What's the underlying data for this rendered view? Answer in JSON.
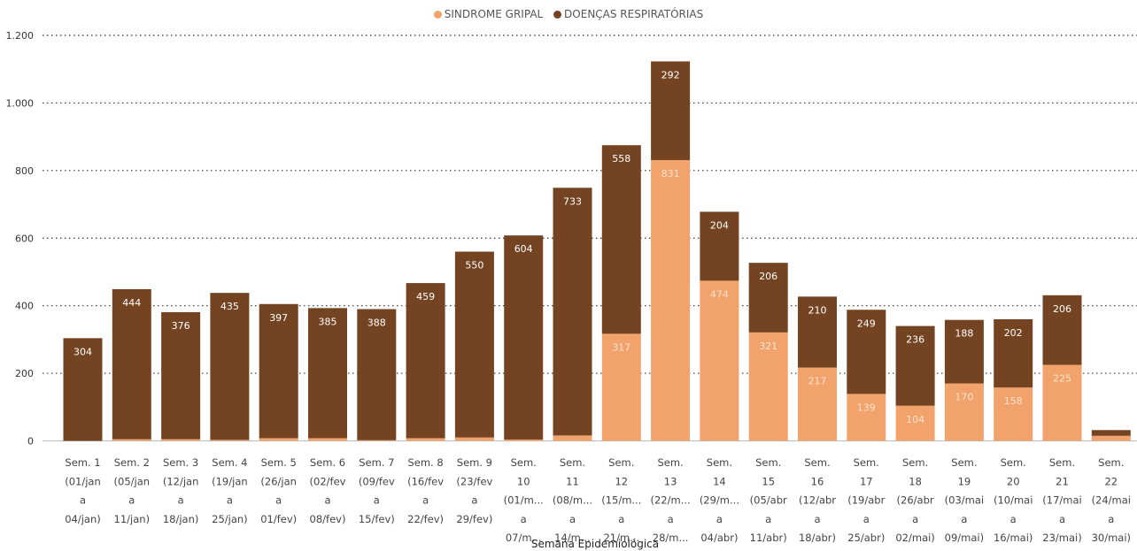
{
  "chart_data": {
    "type": "stacked-bar",
    "xlabel": "Semana Epidemiológica",
    "ylabel": "",
    "ylim": [
      0,
      1200
    ],
    "yticks": [
      0,
      200,
      400,
      600,
      800,
      1000,
      1200
    ],
    "ytick_labels": [
      "0",
      "200",
      "400",
      "600",
      "800",
      "1.000",
      "1.200"
    ],
    "grid": true,
    "legend_position": "top-center",
    "categories": [
      [
        "Sem. 1",
        "(01/jan",
        "a",
        "04/jan)"
      ],
      [
        "Sem. 2",
        "(05/jan",
        "a",
        "11/jan)"
      ],
      [
        "Sem. 3",
        "(12/jan",
        "a",
        "18/jan)"
      ],
      [
        "Sem. 4",
        "(19/jan",
        "a",
        "25/jan)"
      ],
      [
        "Sem. 5",
        "(26/jan",
        "a",
        "01/fev)"
      ],
      [
        "Sem. 6",
        "(02/fev",
        "a",
        "08/fev)"
      ],
      [
        "Sem. 7",
        "(09/fev",
        "a",
        "15/fev)"
      ],
      [
        "Sem. 8",
        "(16/fev",
        "a",
        "22/fev)"
      ],
      [
        "Sem. 9",
        "(23/fev",
        "a",
        "29/fev)"
      ],
      [
        "Sem.",
        "10",
        "(01/m...",
        "a",
        "07/m..."
      ],
      [
        "Sem.",
        "11",
        "(08/m...",
        "a",
        "14/m..."
      ],
      [
        "Sem.",
        "12",
        "(15/m...",
        "a",
        "21/m..."
      ],
      [
        "Sem.",
        "13",
        "(22/m...",
        "a",
        "28/m..."
      ],
      [
        "Sem.",
        "14",
        "(29/m...",
        "a",
        "04/abr)"
      ],
      [
        "Sem.",
        "15",
        "(05/abr",
        "a",
        "11/abr)"
      ],
      [
        "Sem.",
        "16",
        "(12/abr",
        "a",
        "18/abr)"
      ],
      [
        "Sem.",
        "17",
        "(19/abr",
        "a",
        "25/abr)"
      ],
      [
        "Sem.",
        "18",
        "(26/abr",
        "a",
        "02/mai)"
      ],
      [
        "Sem.",
        "19",
        "(03/mai",
        "a",
        "09/mai)"
      ],
      [
        "Sem.",
        "20",
        "(10/mai",
        "a",
        "16/mai)"
      ],
      [
        "Sem.",
        "21",
        "(17/mai",
        "a",
        "23/mai)"
      ],
      [
        "Sem.",
        "22",
        "(24/mai",
        "a",
        "30/mai)"
      ]
    ],
    "series": [
      {
        "name": "SINDROME GRIPAL",
        "color": "#F2A26B",
        "label_color": "#FBE3D0",
        "values": [
          0,
          5,
          5,
          3,
          8,
          8,
          2,
          8,
          10,
          4,
          16,
          317,
          831,
          474,
          321,
          217,
          139,
          104,
          170,
          158,
          225,
          15
        ],
        "labels": [
          "",
          "",
          "",
          "",
          "",
          "",
          "",
          "",
          "",
          "",
          "",
          "317",
          "831",
          "474",
          "321",
          "217",
          "139",
          "104",
          "170",
          "158",
          "225",
          ""
        ]
      },
      {
        "name": "DOENÇAS RESPIRATÓRIAS",
        "color": "#744422",
        "label_color": "#ffffff",
        "values": [
          304,
          444,
          376,
          435,
          397,
          385,
          388,
          459,
          550,
          604,
          733,
          558,
          292,
          204,
          206,
          210,
          249,
          236,
          188,
          202,
          206,
          17
        ],
        "labels": [
          "304",
          "444",
          "376",
          "435",
          "397",
          "385",
          "388",
          "459",
          "550",
          "604",
          "733",
          "558",
          "292",
          "204",
          "206",
          "210",
          "249",
          "236",
          "188",
          "202",
          "206",
          ""
        ]
      }
    ]
  }
}
